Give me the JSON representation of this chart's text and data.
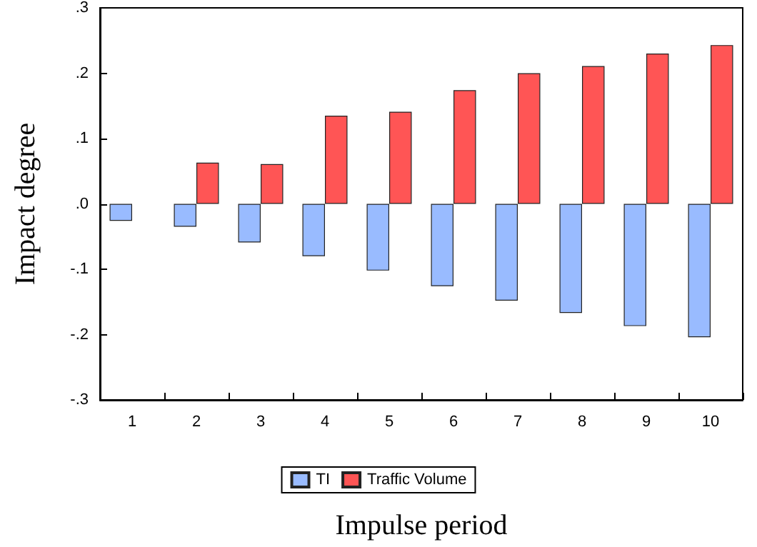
{
  "chart_data": {
    "type": "bar",
    "xlabel": "Impulse period",
    "ylabel": "Impact degree",
    "categories": [
      "1",
      "2",
      "3",
      "4",
      "5",
      "6",
      "7",
      "8",
      "9",
      "10"
    ],
    "series": [
      {
        "name": "TI",
        "color": "#99bbff",
        "values": [
          -0.026,
          -0.035,
          -0.059,
          -0.08,
          -0.102,
          -0.126,
          -0.148,
          -0.167,
          -0.187,
          -0.204
        ]
      },
      {
        "name": "Traffic Volume",
        "color": "#ff5555",
        "values": [
          null,
          0.063,
          0.061,
          0.135,
          0.141,
          0.174,
          0.2,
          0.211,
          0.23,
          0.243
        ]
      }
    ],
    "ylim": [
      -0.3,
      0.3
    ],
    "yticks": [
      {
        "value": -0.3,
        "label": "-.3"
      },
      {
        "value": -0.2,
        "label": "-.2"
      },
      {
        "value": -0.1,
        "label": "-.1"
      },
      {
        "value": 0,
        "label": ".0"
      },
      {
        "value": 0.1,
        "label": ".1"
      },
      {
        "value": 0.2,
        "label": ".2"
      },
      {
        "value": 0.3,
        "label": ".3"
      }
    ],
    "grid": false,
    "legend": "bottom"
  }
}
